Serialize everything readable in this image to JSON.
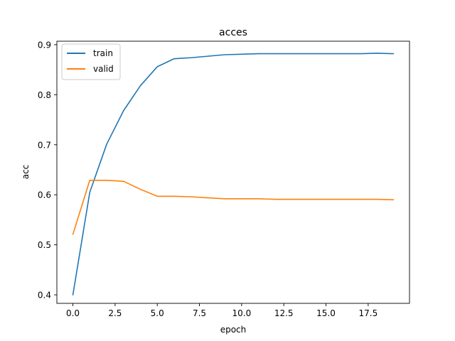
{
  "chart_data": {
    "type": "line",
    "title": "acces",
    "xlabel": "epoch",
    "ylabel": "acc",
    "xlim": [
      -0.95,
      19.95
    ],
    "ylim": [
      0.383,
      0.907
    ],
    "xticks": [
      0.0,
      2.5,
      5.0,
      7.5,
      10.0,
      12.5,
      15.0,
      17.5
    ],
    "xtick_labels": [
      "0.0",
      "2.5",
      "5.0",
      "7.5",
      "10.0",
      "12.5",
      "15.0",
      "17.5"
    ],
    "yticks": [
      0.4,
      0.5,
      0.6,
      0.7,
      0.8,
      0.9
    ],
    "ytick_labels": [
      "0.4",
      "0.5",
      "0.6",
      "0.7",
      "0.8",
      "0.9"
    ],
    "grid": false,
    "legend_position": "upper-left",
    "x": [
      0,
      1,
      2,
      3,
      4,
      5,
      6,
      7,
      8,
      9,
      10,
      11,
      12,
      13,
      14,
      15,
      16,
      17,
      18,
      19
    ],
    "series": [
      {
        "name": "train",
        "color": "#1f77b4",
        "values": [
          0.4,
          0.605,
          0.701,
          0.768,
          0.818,
          0.856,
          0.872,
          0.874,
          0.877,
          0.88,
          0.881,
          0.882,
          0.882,
          0.882,
          0.882,
          0.882,
          0.882,
          0.882,
          0.883,
          0.882
        ]
      },
      {
        "name": "valid",
        "color": "#ff7f0e",
        "values": [
          0.521,
          0.629,
          0.629,
          0.627,
          0.611,
          0.597,
          0.597,
          0.596,
          0.594,
          0.592,
          0.592,
          0.592,
          0.591,
          0.591,
          0.591,
          0.591,
          0.591,
          0.591,
          0.591,
          0.59
        ]
      }
    ]
  }
}
